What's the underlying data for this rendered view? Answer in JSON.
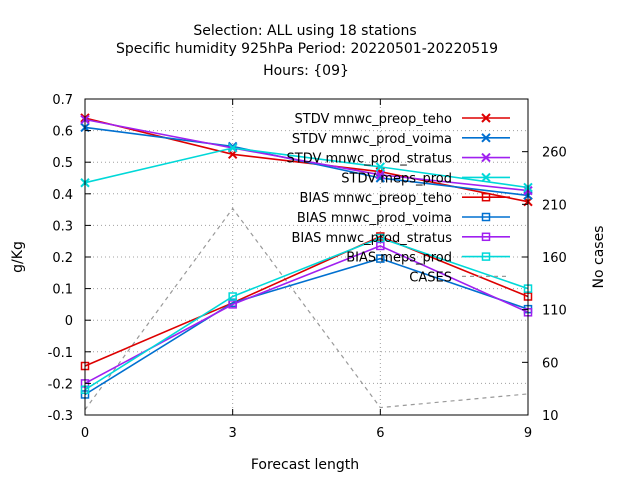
{
  "chart_data": {
    "type": "line",
    "title_lines": [
      "Selection: ALL using    18 stations",
      "Specific humidity 925hPa   Period: 20220501-20220519",
      "Hours: {09}"
    ],
    "xlabel": "Forecast length",
    "ylabel": "g/Kg",
    "y2label": "No cases",
    "x": [
      0,
      3,
      6,
      9
    ],
    "xlim": [
      0,
      9
    ],
    "ylim": [
      -0.3,
      0.7
    ],
    "y2lim": [
      10,
      310
    ],
    "xticks": [
      "0",
      "3",
      "6",
      "9"
    ],
    "yticks": [
      "-0.3",
      "-0.2",
      "-0.1",
      "0",
      "0.1",
      "0.2",
      "0.3",
      "0.4",
      "0.5",
      "0.6",
      "0.7"
    ],
    "y2ticks": [
      "10",
      "60",
      "110",
      "160",
      "210",
      "260"
    ],
    "grid": true,
    "legend_position": "top-right",
    "series": [
      {
        "name": "STDV mnwc_preop_teho",
        "values": [
          0.64,
          0.525,
          0.47,
          0.375
        ],
        "color": "#dd0000",
        "marker": "x",
        "axis": "y"
      },
      {
        "name": "STDV mnwc_prod_voima",
        "values": [
          0.61,
          0.55,
          0.45,
          0.395
        ],
        "color": "#0070d0",
        "marker": "x",
        "axis": "y"
      },
      {
        "name": "STDV mnwc_prod_stratus",
        "values": [
          0.635,
          0.545,
          0.46,
          0.41
        ],
        "color": "#a020f0",
        "marker": "x",
        "axis": "y"
      },
      {
        "name": "STDV meps_prod",
        "values": [
          0.435,
          0.545,
          0.485,
          0.42
        ],
        "color": "#00d8d8",
        "marker": "x",
        "axis": "y"
      },
      {
        "name": "BIAS mnwc_preop_teho",
        "values": [
          -0.145,
          0.055,
          0.265,
          0.075
        ],
        "color": "#dd0000",
        "marker": "square",
        "axis": "y"
      },
      {
        "name": "BIAS mnwc_prod_voima",
        "values": [
          -0.235,
          0.055,
          0.195,
          0.035
        ],
        "color": "#0070d0",
        "marker": "square",
        "axis": "y"
      },
      {
        "name": "BIAS mnwc_prod_stratus",
        "values": [
          -0.2,
          0.05,
          0.235,
          0.025
        ],
        "color": "#a020f0",
        "marker": "square",
        "axis": "y"
      },
      {
        "name": "BIAS meps_prod",
        "values": [
          -0.22,
          0.075,
          0.26,
          0.1
        ],
        "color": "#00d8d8",
        "marker": "square",
        "axis": "y"
      },
      {
        "name": "CASES",
        "values": [
          15,
          206,
          17,
          30
        ],
        "color": "#999999",
        "marker": "none",
        "dash": true,
        "axis": "y2"
      }
    ]
  }
}
